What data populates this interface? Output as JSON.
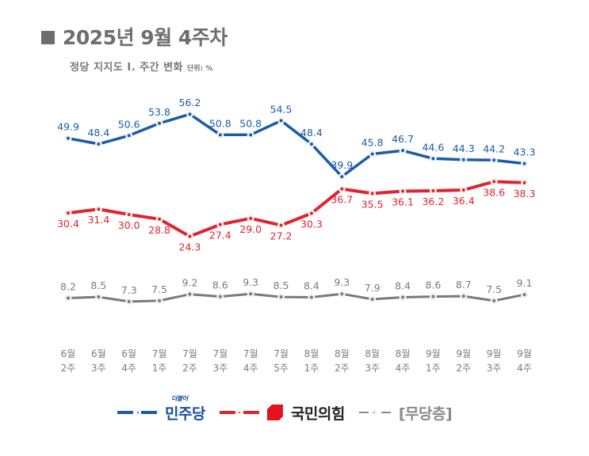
{
  "header": {
    "title_icon": "square",
    "title": "2025년 9월 4주차",
    "subtitle": "정당 지지도 Ⅰ. 주간 변화",
    "unit": "단위: %"
  },
  "chart_data": {
    "type": "line",
    "title": "2025년 9월 4주차",
    "subtitle": "정당 지지도 Ⅰ. 주간 변화",
    "unit": "%",
    "xlabel": "",
    "ylabel": "",
    "ylim": [
      0,
      60
    ],
    "grid": false,
    "legend": "bottom",
    "categories": [
      "6월 2주",
      "6월 3주",
      "6월 4주",
      "7월 1주",
      "7월 2주",
      "7월 3주",
      "7월 4주",
      "7월 5주",
      "8월 1주",
      "8월 2주",
      "8월 3주",
      "8월 4주",
      "9월 1주",
      "9월 2주",
      "9월 3주",
      "9월 4주"
    ],
    "series": [
      {
        "name": "민주당",
        "prefix": "더불어",
        "color": "#1a5ca8",
        "label_position": "above",
        "values": [
          49.9,
          48.4,
          50.6,
          53.8,
          56.2,
          50.8,
          50.8,
          54.5,
          48.4,
          39.9,
          45.8,
          46.7,
          44.6,
          44.3,
          44.2,
          43.3
        ]
      },
      {
        "name": "국민의힘",
        "color": "#e0232e",
        "label_position": "below",
        "values": [
          30.4,
          31.4,
          30.0,
          28.8,
          24.3,
          27.4,
          29.0,
          27.2,
          30.3,
          36.7,
          35.5,
          36.1,
          36.2,
          36.4,
          38.6,
          38.3
        ]
      },
      {
        "name": "[무당층]",
        "color": "#7a7a7a",
        "label_position": "above",
        "values": [
          8.2,
          8.5,
          7.3,
          7.5,
          9.2,
          8.6,
          9.3,
          8.5,
          8.4,
          9.3,
          7.9,
          8.4,
          8.6,
          8.7,
          7.5,
          9.1
        ]
      }
    ]
  },
  "legend": {
    "items": [
      {
        "label": "민주당",
        "prefix": "더불어",
        "color": "#1a5ca8",
        "text_color": "#1a4fa0"
      },
      {
        "label": "국민의힘",
        "color": "#e0232e",
        "text_color": "#222222"
      },
      {
        "label": "[무당층]",
        "color": "#8a8a8a",
        "text_color": "#8a8a8a"
      }
    ]
  }
}
